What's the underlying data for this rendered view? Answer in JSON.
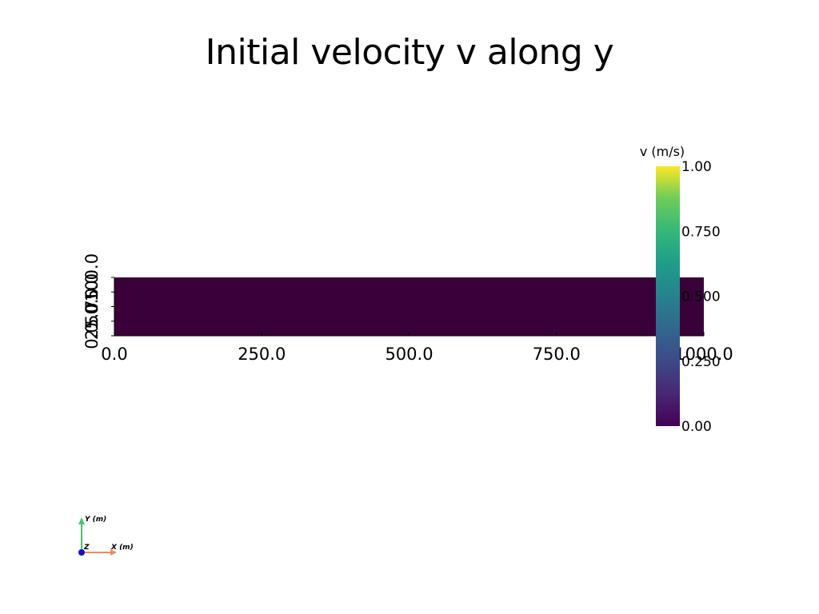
{
  "title": "Initial velocity v along y",
  "chart_data": {
    "type": "heatmap",
    "title": "Initial velocity v along y",
    "field_value": 0.0,
    "x_ticks": [
      "0.0",
      "250.0",
      "500.0",
      "750.0",
      "1000.0"
    ],
    "x_tick_values": [
      0,
      250,
      500,
      750,
      1000
    ],
    "y_ticks": [
      "0.0",
      "25.0",
      "50.0",
      "75.0",
      "100.0"
    ],
    "y_tick_values": [
      0,
      25,
      50,
      75,
      100
    ],
    "xlim": [
      0,
      1000
    ],
    "ylim": [
      0,
      100
    ],
    "colorbar": {
      "title": "v (m/s)",
      "colormap": "viridis",
      "ticks": [
        "1.00",
        "0.750",
        "0.500",
        "0.250",
        "0.00"
      ],
      "tick_values": [
        1.0,
        0.75,
        0.5,
        0.25,
        0.0
      ],
      "range": [
        0.0,
        1.0
      ]
    },
    "axes_widget": {
      "x_label": "X (m)",
      "y_label": "Y (m)",
      "z_label": "Z"
    },
    "colors": {
      "low": "#440154",
      "field": "#3a0039",
      "high": "#fde725",
      "x_axis": "#f08a5d",
      "y_axis": "#4bbf73",
      "z_axis": "#1010d0"
    }
  }
}
